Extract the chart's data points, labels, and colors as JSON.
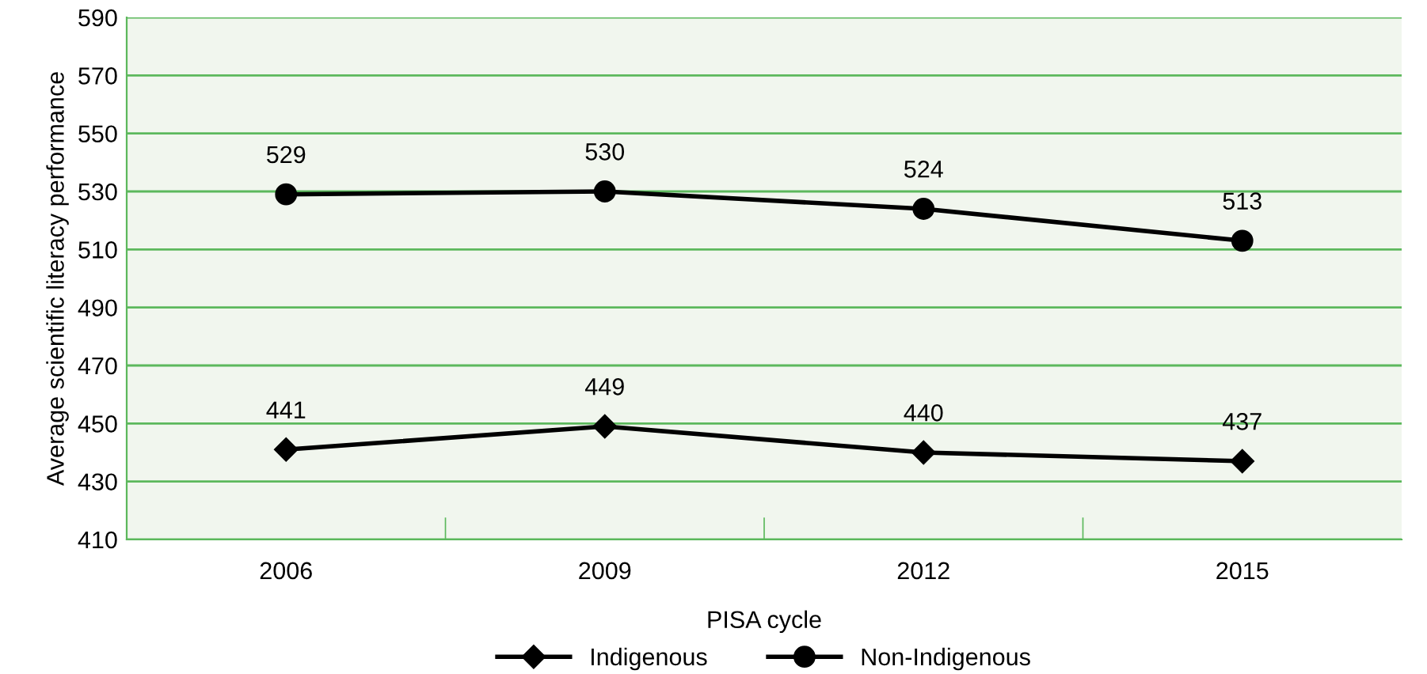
{
  "chart_data": {
    "type": "line",
    "xlabel": "PISA cycle",
    "ylabel": "Average scientific literacy performance",
    "categories": [
      "2006",
      "2009",
      "2012",
      "2015"
    ],
    "series": [
      {
        "name": "Indigenous",
        "color": "#000000",
        "marker": "diamond",
        "values": [
          441,
          449,
          440,
          437
        ]
      },
      {
        "name": "Non-Indigenous",
        "color": "#000000",
        "marker": "circle",
        "values": [
          529,
          530,
          524,
          513
        ]
      }
    ],
    "ylim": [
      410,
      590
    ],
    "yticks": [
      410,
      430,
      450,
      470,
      490,
      510,
      530,
      550,
      570,
      590
    ],
    "grid": "y",
    "legend": "bottom",
    "data_labels": true,
    "line_style": "solid"
  }
}
